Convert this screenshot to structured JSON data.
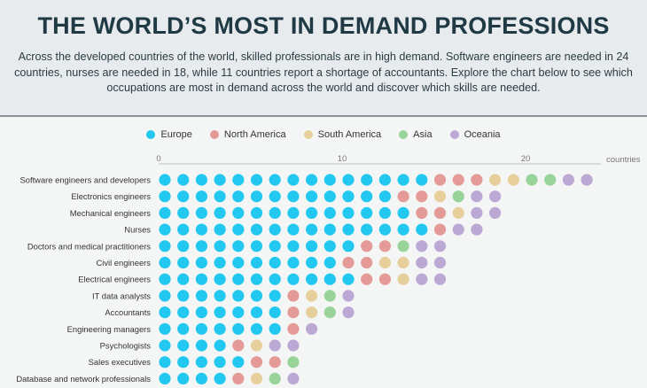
{
  "header": {
    "title": "THE WORLD’S MOST IN DEMAND PROFESSIONS",
    "intro": "Across the developed countries of the world, skilled professionals are in high demand. Software engineers are needed in 24 countries, nurses are needed in 18, while 11 countries report a shortage of accountants. Explore the chart below to see which occupations are most in demand across the world and discover which skills are needed."
  },
  "chart_data": {
    "type": "dot-stacked",
    "xlabel": "countries",
    "xlim": [
      0,
      25
    ],
    "xticks": [
      "0",
      "10",
      "20"
    ],
    "legend_position": "top-center",
    "legend": [
      {
        "name": "Europe",
        "color": "#22c8f0"
      },
      {
        "name": "North America",
        "color": "#e49a96"
      },
      {
        "name": "South America",
        "color": "#e6cf9b"
      },
      {
        "name": "Asia",
        "color": "#98d49a"
      },
      {
        "name": "Oceania",
        "color": "#bca8d4"
      }
    ],
    "categories": [
      "Software engineers and developers",
      "Electronics engineers",
      "Mechanical engineers",
      "Nurses",
      "Doctors and medical practitioners",
      "Civil engineers",
      "Electrical engineers",
      "IT data analysts",
      "Accountants",
      "Engineering managers",
      "Psychologists",
      "Sales executives",
      "Database and network professionals"
    ],
    "series": [
      {
        "name": "Europe",
        "values": [
          15,
          13,
          14,
          15,
          11,
          10,
          11,
          7,
          7,
          7,
          4,
          5,
          4
        ]
      },
      {
        "name": "North America",
        "values": [
          3,
          2,
          2,
          1,
          2,
          2,
          2,
          1,
          1,
          1,
          1,
          2,
          1
        ]
      },
      {
        "name": "South America",
        "values": [
          2,
          1,
          1,
          0,
          0,
          2,
          1,
          1,
          1,
          0,
          1,
          0,
          1
        ]
      },
      {
        "name": "Asia",
        "values": [
          2,
          1,
          0,
          0,
          1,
          0,
          0,
          1,
          1,
          0,
          0,
          1,
          1
        ]
      },
      {
        "name": "Oceania",
        "values": [
          2,
          2,
          2,
          2,
          2,
          2,
          2,
          1,
          1,
          1,
          2,
          0,
          1
        ]
      }
    ]
  }
}
